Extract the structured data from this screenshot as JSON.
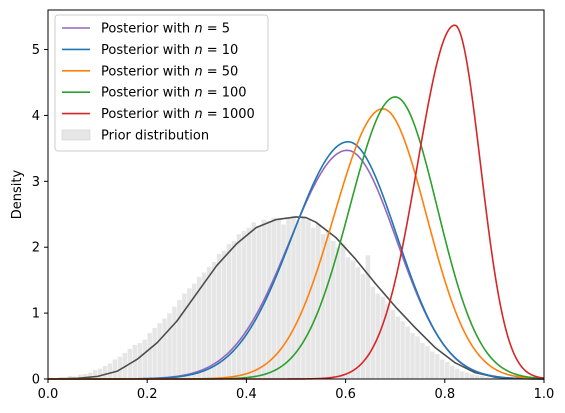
{
  "chart_data": {
    "type": "line",
    "title": "",
    "xlabel": "",
    "ylabel": "Density",
    "xlim": [
      0,
      1
    ],
    "ylim": [
      0,
      5.6
    ],
    "x_ticks": [
      0.0,
      0.2,
      0.4,
      0.6,
      0.8,
      1.0
    ],
    "x_tick_labels": [
      "0.0",
      "0.2",
      "0.4",
      "0.6",
      "0.8",
      "1.0"
    ],
    "y_ticks": [
      0,
      1,
      2,
      3,
      4,
      5
    ],
    "y_tick_labels": [
      "0",
      "1",
      "2",
      "3",
      "4",
      "5"
    ],
    "grid": false,
    "legend_position": "top-left",
    "series": [
      {
        "label_prefix": "Posterior with ",
        "label_var": "n",
        "label_eq": " = ",
        "label_num": "5",
        "color": "#9467bd",
        "mode": 0.603,
        "peak": 3.47,
        "sigma_left": 0.115,
        "sigma_right": 0.1
      },
      {
        "label_prefix": "Posterior with ",
        "label_var": "n",
        "label_eq": " = ",
        "label_num": "10",
        "color": "#1f77b4",
        "mode": 0.605,
        "peak": 3.6,
        "sigma_left": 0.112,
        "sigma_right": 0.098
      },
      {
        "label_prefix": "Posterior with ",
        "label_var": "n",
        "label_eq": " = ",
        "label_num": "50",
        "color": "#ff7f0e",
        "mode": 0.675,
        "peak": 4.1,
        "sigma_left": 0.098,
        "sigma_right": 0.088
      },
      {
        "label_prefix": "Posterior with ",
        "label_var": "n",
        "label_eq": " = ",
        "label_num": "100",
        "color": "#2ca02c",
        "mode": 0.7,
        "peak": 4.28,
        "sigma_left": 0.092,
        "sigma_right": 0.085
      },
      {
        "label_prefix": "Posterior with ",
        "label_var": "n",
        "label_eq": " = ",
        "label_num": "1000",
        "color": "#d62728",
        "mode": 0.82,
        "peak": 5.37,
        "sigma_left": 0.075,
        "sigma_right": 0.052
      }
    ],
    "prior": {
      "label": "Prior distribution",
      "fill_color": "#e6e6e6",
      "line_color": "#4d4d4d",
      "x": [
        0.0,
        0.06,
        0.1,
        0.14,
        0.18,
        0.22,
        0.26,
        0.3,
        0.34,
        0.38,
        0.42,
        0.46,
        0.5,
        0.52,
        0.54,
        0.58,
        0.62,
        0.66,
        0.7,
        0.74,
        0.78,
        0.82,
        0.86,
        0.9,
        0.94,
        1.0
      ],
      "y": [
        0.0,
        0.01,
        0.04,
        0.12,
        0.3,
        0.55,
        0.88,
        1.3,
        1.72,
        2.05,
        2.3,
        2.42,
        2.46,
        2.45,
        2.38,
        2.15,
        1.82,
        1.45,
        1.1,
        0.78,
        0.48,
        0.25,
        0.1,
        0.03,
        0.005,
        0.0
      ],
      "hist_bin_width": 0.01,
      "hist_bins_y": [
        0.02,
        0.01,
        0.03,
        0.02,
        0.05,
        0.04,
        0.07,
        0.08,
        0.1,
        0.14,
        0.16,
        0.2,
        0.24,
        0.3,
        0.34,
        0.4,
        0.46,
        0.52,
        0.55,
        0.6,
        0.7,
        0.78,
        0.85,
        0.92,
        1.0,
        1.1,
        1.2,
        1.3,
        1.38,
        1.45,
        1.55,
        1.62,
        1.7,
        1.78,
        1.9,
        1.95,
        2.05,
        2.1,
        2.2,
        2.25,
        2.3,
        2.38,
        2.32,
        2.42,
        2.4,
        2.45,
        2.44,
        2.35,
        2.45,
        2.48,
        2.4,
        2.46,
        2.42,
        2.3,
        2.36,
        2.2,
        2.25,
        2.1,
        2.0,
        2.05,
        1.85,
        1.8,
        1.7,
        1.6,
        1.88,
        1.4,
        1.3,
        1.25,
        1.15,
        1.05,
        0.95,
        0.88,
        0.8,
        0.7,
        0.65,
        0.55,
        0.5,
        0.42,
        0.38,
        0.3,
        0.26,
        0.2,
        0.16,
        0.12,
        0.1,
        0.08,
        0.06,
        0.05,
        0.03,
        0.02,
        0.02,
        0.01,
        0.01,
        0.0,
        0.0,
        0.0,
        0.0,
        0.0,
        0.0,
        0.0
      ]
    }
  }
}
